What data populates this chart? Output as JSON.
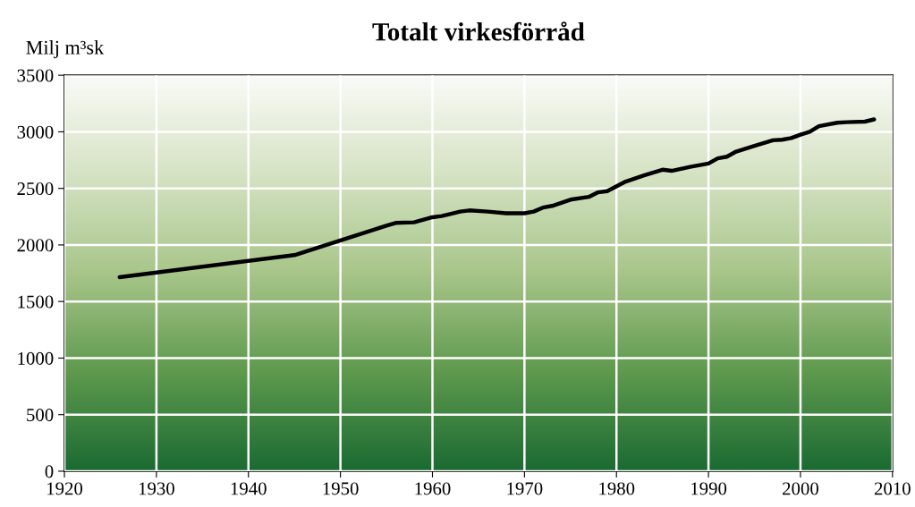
{
  "chart_data": {
    "type": "line",
    "title": "Totalt virkesförråd",
    "ylabel": "Milj m³sk",
    "x": [
      1926,
      1945,
      1950,
      1955,
      1956,
      1958,
      1960,
      1961,
      1963,
      1964,
      1966,
      1968,
      1970,
      1971,
      1972,
      1973,
      1975,
      1977,
      1978,
      1979,
      1981,
      1983,
      1985,
      1986,
      1988,
      1990,
      1991,
      1992,
      1993,
      1995,
      1997,
      1998,
      1999,
      2000,
      2001,
      2002,
      2004,
      2005,
      2007,
      2008
    ],
    "series": [
      {
        "color": "#000000",
        "values": [
          1715,
          1910,
          2040,
          2170,
          2195,
          2200,
          2245,
          2255,
          2295,
          2305,
          2295,
          2280,
          2280,
          2295,
          2330,
          2345,
          2400,
          2425,
          2465,
          2475,
          2560,
          2615,
          2665,
          2655,
          2690,
          2720,
          2765,
          2780,
          2825,
          2875,
          2925,
          2930,
          2945,
          2975,
          3000,
          3050,
          3080,
          3085,
          3090,
          3110
        ]
      }
    ],
    "xlim": [
      1920,
      2010
    ],
    "xticks": [
      1920,
      1930,
      1940,
      1950,
      1960,
      1970,
      1980,
      1990,
      2000,
      2010
    ],
    "ylim": [
      0,
      3500
    ],
    "yticks": [
      0,
      500,
      1000,
      1500,
      2000,
      2500,
      3000,
      3500
    ],
    "grid": true,
    "marker": "none",
    "line_style": "solid"
  }
}
